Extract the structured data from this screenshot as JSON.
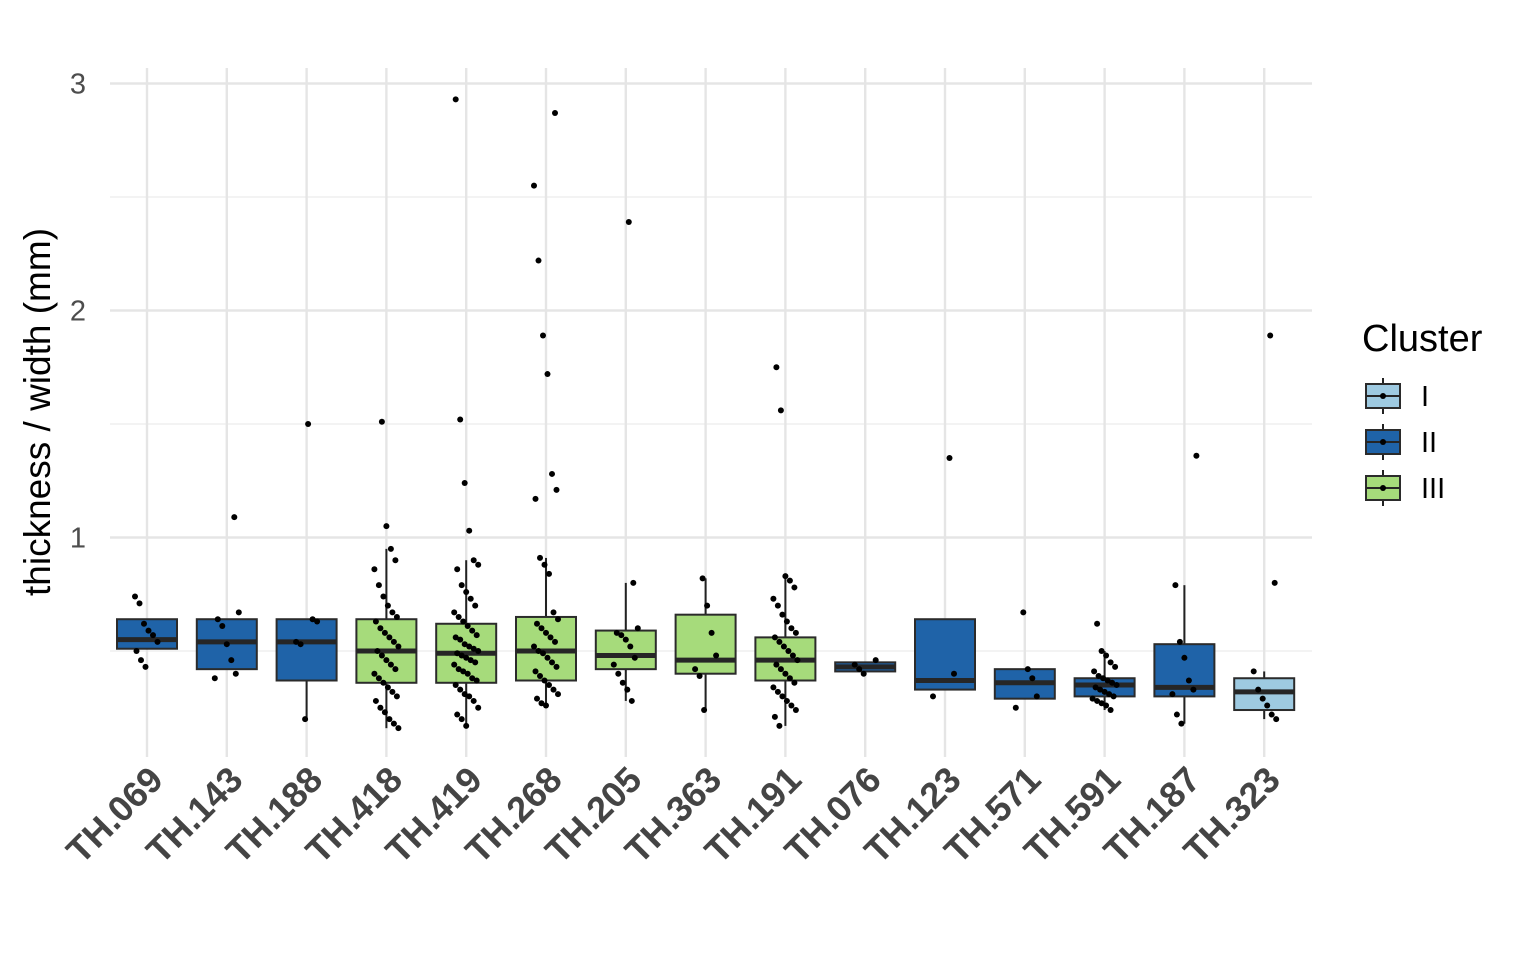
{
  "chart_data": {
    "type": "boxplot",
    "ylabel": "thickness / width (mm)",
    "xlabel": "",
    "ylim": [
      0,
      3
    ],
    "y_ticks": [
      "1",
      "2",
      "3"
    ],
    "y_tick_values": [
      1,
      2,
      3
    ],
    "legend": {
      "title": "Cluster",
      "position": "right",
      "items": [
        {
          "label": "I",
          "color": "#9ecae1"
        },
        {
          "label": "II",
          "color": "#1f63a8"
        },
        {
          "label": "III",
          "color": "#a6db7b"
        }
      ]
    },
    "categories": [
      {
        "label": "TH.069",
        "cluster": "II",
        "q1": 0.51,
        "median": 0.55,
        "q3": 0.64,
        "whisker_low": 0.51,
        "whisker_high": 0.64,
        "points": [
          0.74,
          0.71,
          0.62,
          0.59,
          0.57,
          0.54,
          0.5,
          0.46,
          0.43
        ]
      },
      {
        "label": "TH.143",
        "cluster": "II",
        "q1": 0.42,
        "median": 0.54,
        "q3": 0.64,
        "whisker_low": 0.42,
        "whisker_high": 0.64,
        "points": [
          1.09,
          0.67,
          0.64,
          0.61,
          0.53,
          0.46,
          0.4,
          0.38
        ]
      },
      {
        "label": "TH.188",
        "cluster": "II",
        "q1": 0.37,
        "median": 0.54,
        "q3": 0.64,
        "whisker_low": 0.2,
        "whisker_high": 0.64,
        "points": [
          1.5,
          0.64,
          0.63,
          0.54,
          0.53,
          0.2
        ]
      },
      {
        "label": "TH.418",
        "cluster": "III",
        "q1": 0.36,
        "median": 0.5,
        "q3": 0.64,
        "whisker_low": 0.16,
        "whisker_high": 0.95,
        "points": [
          1.51,
          1.05,
          0.95,
          0.9,
          0.86,
          0.79,
          0.74,
          0.7,
          0.67,
          0.65,
          0.63,
          0.6,
          0.58,
          0.56,
          0.54,
          0.52,
          0.5,
          0.48,
          0.46,
          0.44,
          0.42,
          0.4,
          0.38,
          0.36,
          0.34,
          0.32,
          0.3,
          0.28,
          0.25,
          0.23,
          0.2,
          0.18,
          0.16
        ]
      },
      {
        "label": "TH.419",
        "cluster": "III",
        "q1": 0.36,
        "median": 0.49,
        "q3": 0.62,
        "whisker_low": 0.17,
        "whisker_high": 0.9,
        "points": [
          2.93,
          1.52,
          1.24,
          1.03,
          0.9,
          0.88,
          0.86,
          0.79,
          0.76,
          0.73,
          0.7,
          0.67,
          0.65,
          0.63,
          0.61,
          0.59,
          0.57,
          0.56,
          0.55,
          0.53,
          0.52,
          0.51,
          0.5,
          0.49,
          0.48,
          0.47,
          0.46,
          0.45,
          0.44,
          0.42,
          0.41,
          0.4,
          0.38,
          0.37,
          0.35,
          0.33,
          0.31,
          0.3,
          0.28,
          0.25,
          0.22,
          0.2,
          0.17
        ]
      },
      {
        "label": "TH.268",
        "cluster": "III",
        "q1": 0.37,
        "median": 0.5,
        "q3": 0.65,
        "whisker_low": 0.26,
        "whisker_high": 0.91,
        "points": [
          2.87,
          2.55,
          2.22,
          1.89,
          1.72,
          1.28,
          1.21,
          1.17,
          0.91,
          0.88,
          0.84,
          0.67,
          0.64,
          0.62,
          0.6,
          0.58,
          0.56,
          0.54,
          0.52,
          0.5,
          0.49,
          0.47,
          0.45,
          0.43,
          0.41,
          0.39,
          0.37,
          0.35,
          0.33,
          0.31,
          0.29,
          0.27,
          0.26
        ]
      },
      {
        "label": "TH.205",
        "cluster": "III",
        "q1": 0.42,
        "median": 0.48,
        "q3": 0.59,
        "whisker_low": 0.28,
        "whisker_high": 0.8,
        "points": [
          2.39,
          0.8,
          0.6,
          0.58,
          0.57,
          0.55,
          0.52,
          0.47,
          0.44,
          0.4,
          0.36,
          0.33,
          0.28
        ]
      },
      {
        "label": "TH.363",
        "cluster": "III",
        "q1": 0.4,
        "median": 0.46,
        "q3": 0.66,
        "whisker_low": 0.24,
        "whisker_high": 0.82,
        "points": [
          0.82,
          0.7,
          0.58,
          0.48,
          0.42,
          0.39,
          0.24
        ]
      },
      {
        "label": "TH.191",
        "cluster": "III",
        "q1": 0.37,
        "median": 0.46,
        "q3": 0.56,
        "whisker_low": 0.17,
        "whisker_high": 0.83,
        "points": [
          1.75,
          1.56,
          0.83,
          0.81,
          0.78,
          0.73,
          0.7,
          0.66,
          0.63,
          0.6,
          0.58,
          0.56,
          0.54,
          0.52,
          0.5,
          0.48,
          0.46,
          0.44,
          0.42,
          0.4,
          0.38,
          0.36,
          0.34,
          0.32,
          0.3,
          0.28,
          0.26,
          0.24,
          0.21,
          0.17
        ]
      },
      {
        "label": "TH.076",
        "cluster": "II",
        "q1": 0.41,
        "median": 0.43,
        "q3": 0.45,
        "whisker_low": 0.41,
        "whisker_high": 0.45,
        "points": [
          0.46,
          0.44,
          0.42,
          0.4
        ]
      },
      {
        "label": "TH.123",
        "cluster": "II",
        "q1": 0.33,
        "median": 0.37,
        "q3": 0.64,
        "whisker_low": 0.33,
        "whisker_high": 0.64,
        "points": [
          1.35,
          0.4,
          0.3
        ]
      },
      {
        "label": "TH.571",
        "cluster": "II",
        "q1": 0.29,
        "median": 0.36,
        "q3": 0.42,
        "whisker_low": 0.29,
        "whisker_high": 0.42,
        "points": [
          0.67,
          0.42,
          0.38,
          0.3,
          0.25
        ]
      },
      {
        "label": "TH.591",
        "cluster": "II",
        "q1": 0.3,
        "median": 0.35,
        "q3": 0.38,
        "whisker_low": 0.24,
        "whisker_high": 0.5,
        "points": [
          0.62,
          0.5,
          0.48,
          0.45,
          0.43,
          0.41,
          0.39,
          0.38,
          0.37,
          0.36,
          0.35,
          0.34,
          0.33,
          0.32,
          0.31,
          0.3,
          0.29,
          0.28,
          0.27,
          0.26,
          0.24
        ]
      },
      {
        "label": "TH.187",
        "cluster": "II",
        "q1": 0.3,
        "median": 0.34,
        "q3": 0.53,
        "whisker_low": 0.18,
        "whisker_high": 0.79,
        "points": [
          1.36,
          0.79,
          0.54,
          0.47,
          0.37,
          0.33,
          0.31,
          0.22,
          0.18
        ]
      },
      {
        "label": "TH.323",
        "cluster": "I",
        "q1": 0.24,
        "median": 0.32,
        "q3": 0.38,
        "whisker_low": 0.2,
        "whisker_high": 0.41,
        "points": [
          1.89,
          0.8,
          0.41,
          0.33,
          0.29,
          0.26,
          0.22,
          0.2
        ]
      }
    ]
  }
}
